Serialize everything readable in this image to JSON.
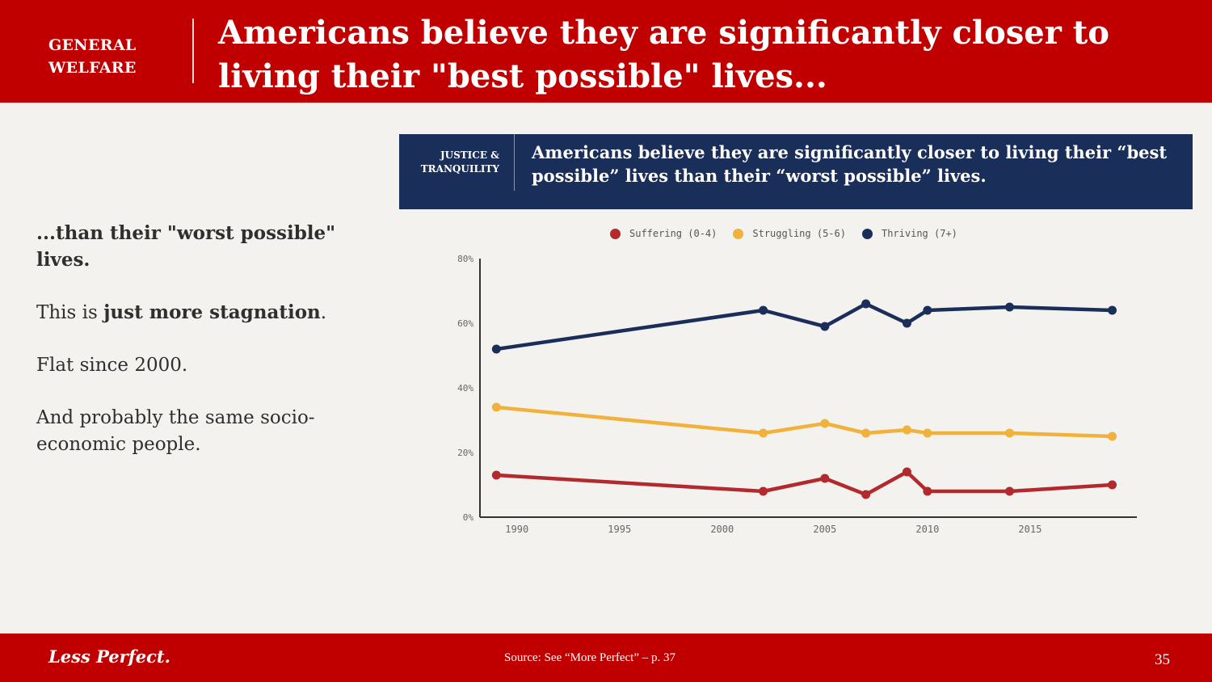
{
  "header": {
    "section_line1": "GENERAL",
    "section_line2": "WELFARE",
    "title": "Americans believe they are significantly closer to living their \"best possible\" lives..."
  },
  "left_panel": {
    "lead": "...than their \"worst possible\" lives.",
    "p2_prefix": "This is ",
    "p2_bold": "just more stagnation",
    "p2_suffix": ".",
    "p3": "Flat since 2000.",
    "p4": "And probably the same socio-economic people."
  },
  "banner": {
    "label_line1": "JUSTICE &",
    "label_line2": "TRANQUILITY",
    "title": "Americans believe they are significantly closer to living their “best possible” lives than their “worst possible” lives."
  },
  "chart_data": {
    "type": "line",
    "title": "",
    "xlabel": "",
    "ylabel": "",
    "xlim": [
      1988.2,
      2020.2
    ],
    "ylim": [
      0,
      80
    ],
    "x_ticks": [
      1990,
      1995,
      2000,
      2005,
      2010,
      2015
    ],
    "y_ticks": [
      0,
      20,
      40,
      60,
      80
    ],
    "y_tick_labels": [
      "0%",
      "20%",
      "40%",
      "60%",
      "80%"
    ],
    "grid": false,
    "legend_position": "top-center",
    "x": [
      1989,
      2002,
      2005,
      2007,
      2009,
      2010,
      2014,
      2019
    ],
    "series": [
      {
        "name": "Suffering (0-4)",
        "color": "#b22a2e",
        "values": [
          13,
          8,
          12,
          7,
          14,
          8,
          8,
          10
        ]
      },
      {
        "name": "Struggling (5-6)",
        "color": "#f0b23a",
        "values": [
          34,
          26,
          29,
          26,
          27,
          26,
          26,
          25
        ]
      },
      {
        "name": "Thriving (7+)",
        "color": "#1b2e5a",
        "values": [
          52,
          64,
          59,
          66,
          60,
          64,
          65,
          64
        ]
      }
    ]
  },
  "footer": {
    "brand": "Less Perfect.",
    "source": "Source: See “More Perfect” – p. 37",
    "page": "35"
  }
}
